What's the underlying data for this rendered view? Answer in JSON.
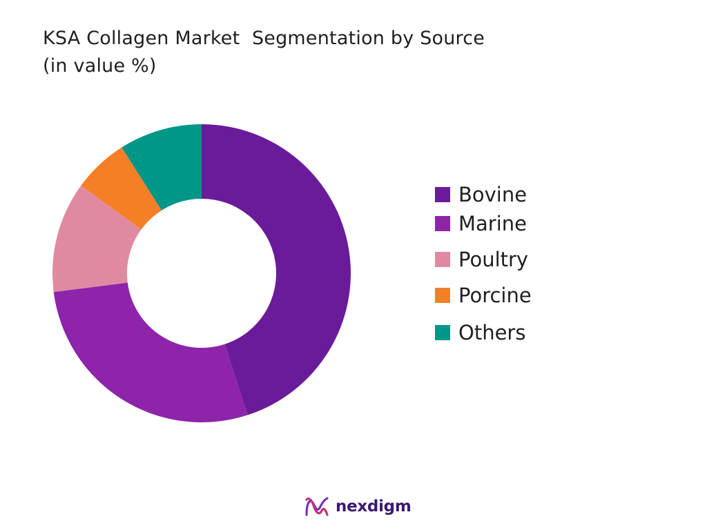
{
  "title_line1": "KSA Collagen Market  Segmentation by Source",
  "title_line2": "(in value %)",
  "chart_data": {
    "type": "pie",
    "variant": "donut",
    "categories": [
      "Bovine",
      "Marine",
      "Poultry",
      "Porcine",
      "Others"
    ],
    "values": [
      45,
      28,
      12,
      6,
      9
    ],
    "colors": [
      "#6a1b9a",
      "#8e24aa",
      "#e08aa2",
      "#f57f26",
      "#009688"
    ],
    "legend": "right",
    "start_angle": "top",
    "direction": "clockwise"
  },
  "brand": {
    "name": "nexdigm",
    "text_color": "#3b1a6e",
    "icon_colors": [
      "#7b2fbf",
      "#c0307a"
    ],
    "icon": "nexdigm-logo-icon"
  }
}
